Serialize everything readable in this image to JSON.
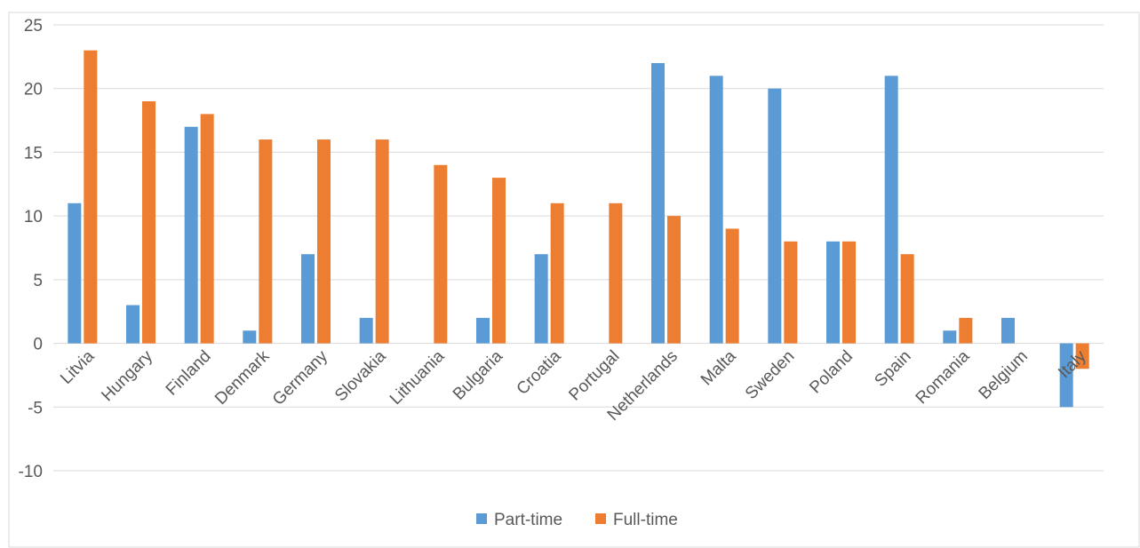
{
  "chart_data": {
    "type": "bar",
    "categories": [
      "Litvia",
      "Hungary",
      "Finland",
      "Denmark",
      "Germany",
      "Slovakia",
      "Lithuania",
      "Bulgaria",
      "Croatia",
      "Portugal",
      "Netherlands",
      "Malta",
      "Sweden",
      "Poland",
      "Spain",
      "Romania",
      "Belgium",
      "Italy"
    ],
    "series": [
      {
        "name": "Part-time",
        "color": "#5B9BD5",
        "values": [
          11,
          3,
          17,
          1,
          7,
          2,
          0,
          2,
          7,
          0,
          22,
          21,
          20,
          8,
          21,
          1,
          2,
          -5
        ]
      },
      {
        "name": "Full-time",
        "color": "#ED7D31",
        "values": [
          23,
          19,
          18,
          16,
          16,
          16,
          14,
          13,
          11,
          11,
          10,
          9,
          8,
          8,
          7,
          2,
          0,
          -2
        ]
      }
    ],
    "ylim": [
      -10,
      25
    ],
    "yticks": [
      "-10",
      "-5",
      "0",
      "5",
      "10",
      "15",
      "20",
      "25"
    ],
    "grid": true,
    "legend": "bottom-center",
    "title": "",
    "xlabel": "",
    "ylabel": ""
  }
}
